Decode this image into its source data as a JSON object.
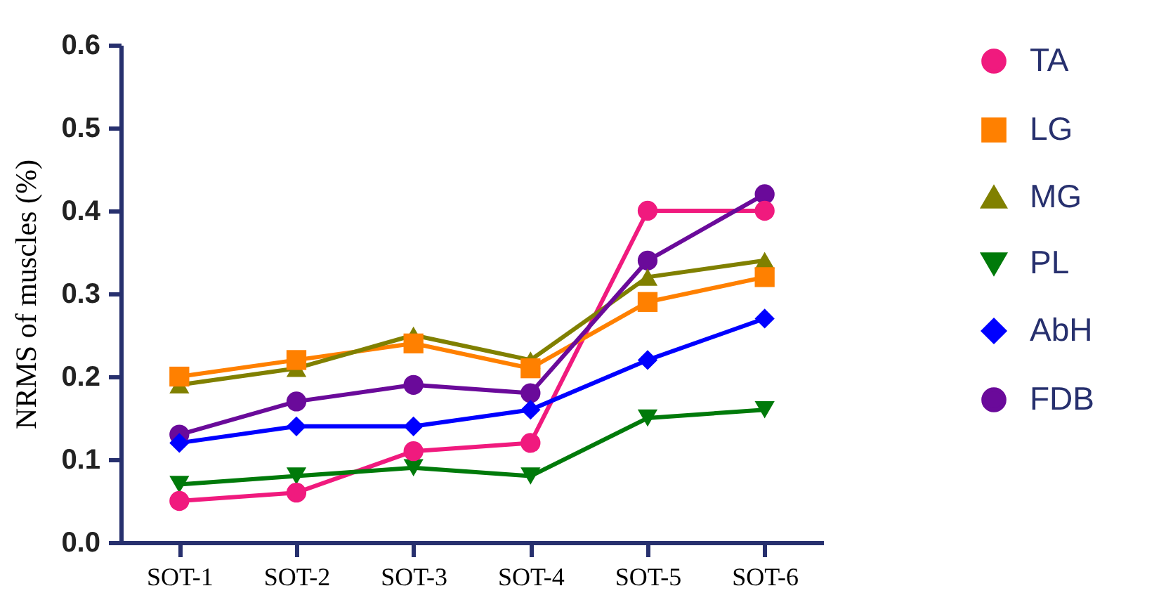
{
  "chart_data": {
    "type": "line",
    "ylabel": "NRMS of muscles (%)",
    "categories": [
      "SOT-1",
      "SOT-2",
      "SOT-3",
      "SOT-4",
      "SOT-5",
      "SOT-6"
    ],
    "series": [
      {
        "name": "TA",
        "color": "#f01a7e",
        "marker": "circle",
        "values": [
          0.05,
          0.06,
          0.11,
          0.12,
          0.4,
          0.4
        ]
      },
      {
        "name": "LG",
        "color": "#ff8000",
        "marker": "square",
        "values": [
          0.2,
          0.22,
          0.24,
          0.21,
          0.29,
          0.32
        ]
      },
      {
        "name": "MG",
        "color": "#808000",
        "marker": "triangle",
        "values": [
          0.19,
          0.21,
          0.25,
          0.22,
          0.32,
          0.34
        ]
      },
      {
        "name": "PL",
        "color": "#007a0a",
        "marker": "triangle-down",
        "values": [
          0.07,
          0.08,
          0.09,
          0.08,
          0.15,
          0.16
        ]
      },
      {
        "name": "AbH",
        "color": "#0000ff",
        "marker": "diamond",
        "values": [
          0.12,
          0.14,
          0.14,
          0.16,
          0.22,
          0.27
        ]
      },
      {
        "name": "FDB",
        "color": "#6a0a9a",
        "marker": "circle",
        "values": [
          0.13,
          0.17,
          0.19,
          0.18,
          0.34,
          0.42
        ]
      }
    ],
    "ylim": [
      0,
      0.6
    ],
    "yticks": [
      {
        "value": 0,
        "label": "0.0"
      },
      0.1,
      0.2,
      0.3,
      0.4,
      0.5,
      0.6
    ],
    "grid": false,
    "legend": "right",
    "line_style": "solid"
  }
}
